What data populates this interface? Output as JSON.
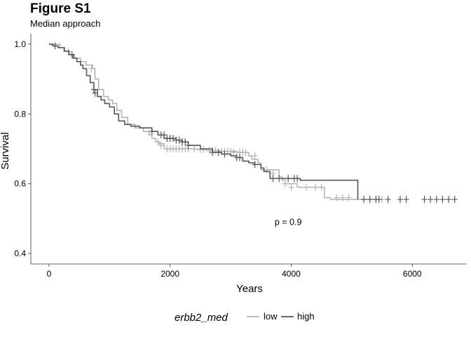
{
  "chart_data": {
    "type": "line",
    "title": "Figure S1",
    "subtitle": "Median approach",
    "xlabel": "Years",
    "ylabel": "Survival",
    "xlim": [
      -300,
      6900
    ],
    "ylim": [
      0.37,
      1.03
    ],
    "x_ticks": [
      0,
      2000,
      4000,
      6000
    ],
    "y_ticks": [
      0.4,
      0.6,
      0.8,
      1.0
    ],
    "x_tick_labels": [
      "0",
      "2000",
      "4000",
      "6000"
    ],
    "y_tick_labels": [
      "0.4",
      "0.6",
      "0.8",
      "1.0"
    ],
    "grid": false,
    "legend": {
      "title": "erbb2_med",
      "position": "bottom"
    },
    "annotation": {
      "text": "p = 0.9",
      "x": 3950,
      "y": 0.49
    },
    "series": [
      {
        "name": "low",
        "color": "#b5b5b5",
        "x": [
          0,
          180,
          260,
          330,
          420,
          520,
          610,
          720,
          760,
          820,
          900,
          980,
          1050,
          1120,
          1200,
          1300,
          1420,
          1560,
          1650,
          1700,
          1760,
          1820,
          1900,
          2300,
          2350,
          2450,
          2600,
          2800,
          3100,
          3300,
          3350,
          3450,
          3500,
          3800,
          3850,
          3900,
          4100,
          4550,
          4650,
          5050,
          5150,
          5500
        ],
        "y": [
          1.0,
          0.99,
          0.98,
          0.97,
          0.96,
          0.95,
          0.94,
          0.93,
          0.9,
          0.87,
          0.85,
          0.84,
          0.83,
          0.81,
          0.79,
          0.77,
          0.76,
          0.75,
          0.74,
          0.73,
          0.72,
          0.715,
          0.7,
          0.7,
          0.7,
          0.698,
          0.695,
          0.693,
          0.69,
          0.68,
          0.67,
          0.66,
          0.64,
          0.62,
          0.61,
          0.6,
          0.59,
          0.56,
          0.555,
          0.555,
          0.555,
          0.555
        ],
        "censor_x": [
          320,
          700,
          1800,
          1850,
          1950,
          2000,
          2050,
          2100,
          2150,
          2200,
          2250,
          2300,
          2400,
          2500,
          2550,
          2650,
          2700,
          2750,
          2850,
          2900,
          2950,
          3000,
          3050,
          3150,
          3200,
          3250,
          3400,
          3600,
          3700,
          3900,
          4000,
          4250,
          4400,
          4500,
          4750,
          4850,
          4950,
          5300,
          5400,
          5500
        ],
        "censor_y": [
          0.98,
          0.93,
          0.72,
          0.71,
          0.7,
          0.7,
          0.7,
          0.7,
          0.7,
          0.7,
          0.7,
          0.7,
          0.7,
          0.698,
          0.698,
          0.695,
          0.695,
          0.695,
          0.693,
          0.693,
          0.693,
          0.693,
          0.69,
          0.69,
          0.69,
          0.69,
          0.68,
          0.64,
          0.63,
          0.6,
          0.59,
          0.59,
          0.59,
          0.59,
          0.56,
          0.56,
          0.56,
          0.555,
          0.555,
          0.555
        ]
      },
      {
        "name": "high",
        "color": "#555555",
        "x": [
          0,
          60,
          150,
          250,
          330,
          400,
          460,
          520,
          560,
          620,
          680,
          740,
          800,
          860,
          920,
          1000,
          1080,
          1150,
          1250,
          1350,
          1500,
          1700,
          1800,
          1900,
          2100,
          2200,
          2300,
          2500,
          2700,
          2850,
          3000,
          3100,
          3200,
          3300,
          3400,
          3500,
          3550,
          3650,
          4150,
          5100
        ],
        "y": [
          1.0,
          0.995,
          0.99,
          0.98,
          0.97,
          0.96,
          0.95,
          0.94,
          0.93,
          0.91,
          0.89,
          0.87,
          0.85,
          0.84,
          0.83,
          0.82,
          0.8,
          0.78,
          0.77,
          0.765,
          0.76,
          0.75,
          0.74,
          0.73,
          0.725,
          0.72,
          0.71,
          0.7,
          0.69,
          0.685,
          0.68,
          0.675,
          0.665,
          0.66,
          0.655,
          0.645,
          0.635,
          0.615,
          0.61,
          0.555
        ],
        "censor_x": [
          100,
          380,
          740,
          760,
          1700,
          1850,
          1900,
          1950,
          2000,
          2050,
          2100,
          2150,
          2200,
          2250,
          2300,
          2700,
          2800,
          2900,
          3100,
          3150,
          3400,
          3700,
          3800,
          3950,
          4050,
          4100,
          5200,
          5300,
          5400,
          5450,
          5600,
          5800,
          5900,
          6200,
          6300,
          6400,
          6500,
          6600,
          6700
        ],
        "censor_y": [
          0.995,
          0.97,
          0.87,
          0.86,
          0.75,
          0.74,
          0.74,
          0.73,
          0.73,
          0.73,
          0.725,
          0.725,
          0.72,
          0.72,
          0.71,
          0.69,
          0.69,
          0.685,
          0.675,
          0.675,
          0.655,
          0.615,
          0.615,
          0.615,
          0.615,
          0.615,
          0.555,
          0.555,
          0.555,
          0.555,
          0.555,
          0.555,
          0.555,
          0.555,
          0.555,
          0.555,
          0.555,
          0.555,
          0.555
        ]
      }
    ]
  }
}
